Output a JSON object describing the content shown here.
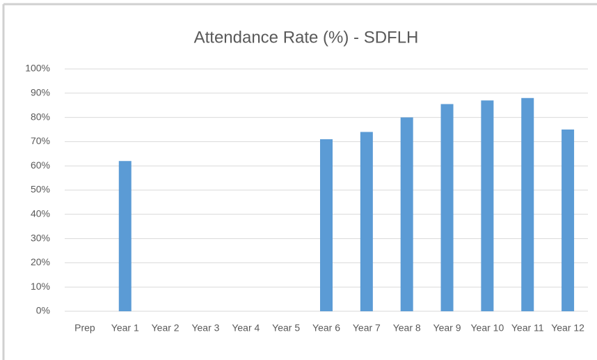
{
  "chart_data": {
    "type": "bar",
    "title": "Attendance Rate (%) - SDFLH",
    "categories": [
      "Prep",
      "Year 1",
      "Year 2",
      "Year 3",
      "Year 4",
      "Year 5",
      "Year 6",
      "Year 7",
      "Year 8",
      "Year 9",
      "Year 10",
      "Year 11",
      "Year 12"
    ],
    "values": [
      null,
      62,
      null,
      null,
      null,
      null,
      71,
      74,
      80,
      85.5,
      87,
      88,
      75
    ],
    "color": "#5b9bd5",
    "ylim": [
      0,
      100
    ],
    "yticks": [
      {
        "value": 0,
        "label": "0%"
      },
      {
        "value": 10,
        "label": "10%"
      },
      {
        "value": 20,
        "label": "20%"
      },
      {
        "value": 30,
        "label": "30%"
      },
      {
        "value": 40,
        "label": "40%"
      },
      {
        "value": 50,
        "label": "50%"
      },
      {
        "value": 60,
        "label": "60%"
      },
      {
        "value": 70,
        "label": "70%"
      },
      {
        "value": 80,
        "label": "80%"
      },
      {
        "value": 90,
        "label": "90%"
      },
      {
        "value": 100,
        "label": "100%"
      }
    ],
    "grid": true
  }
}
